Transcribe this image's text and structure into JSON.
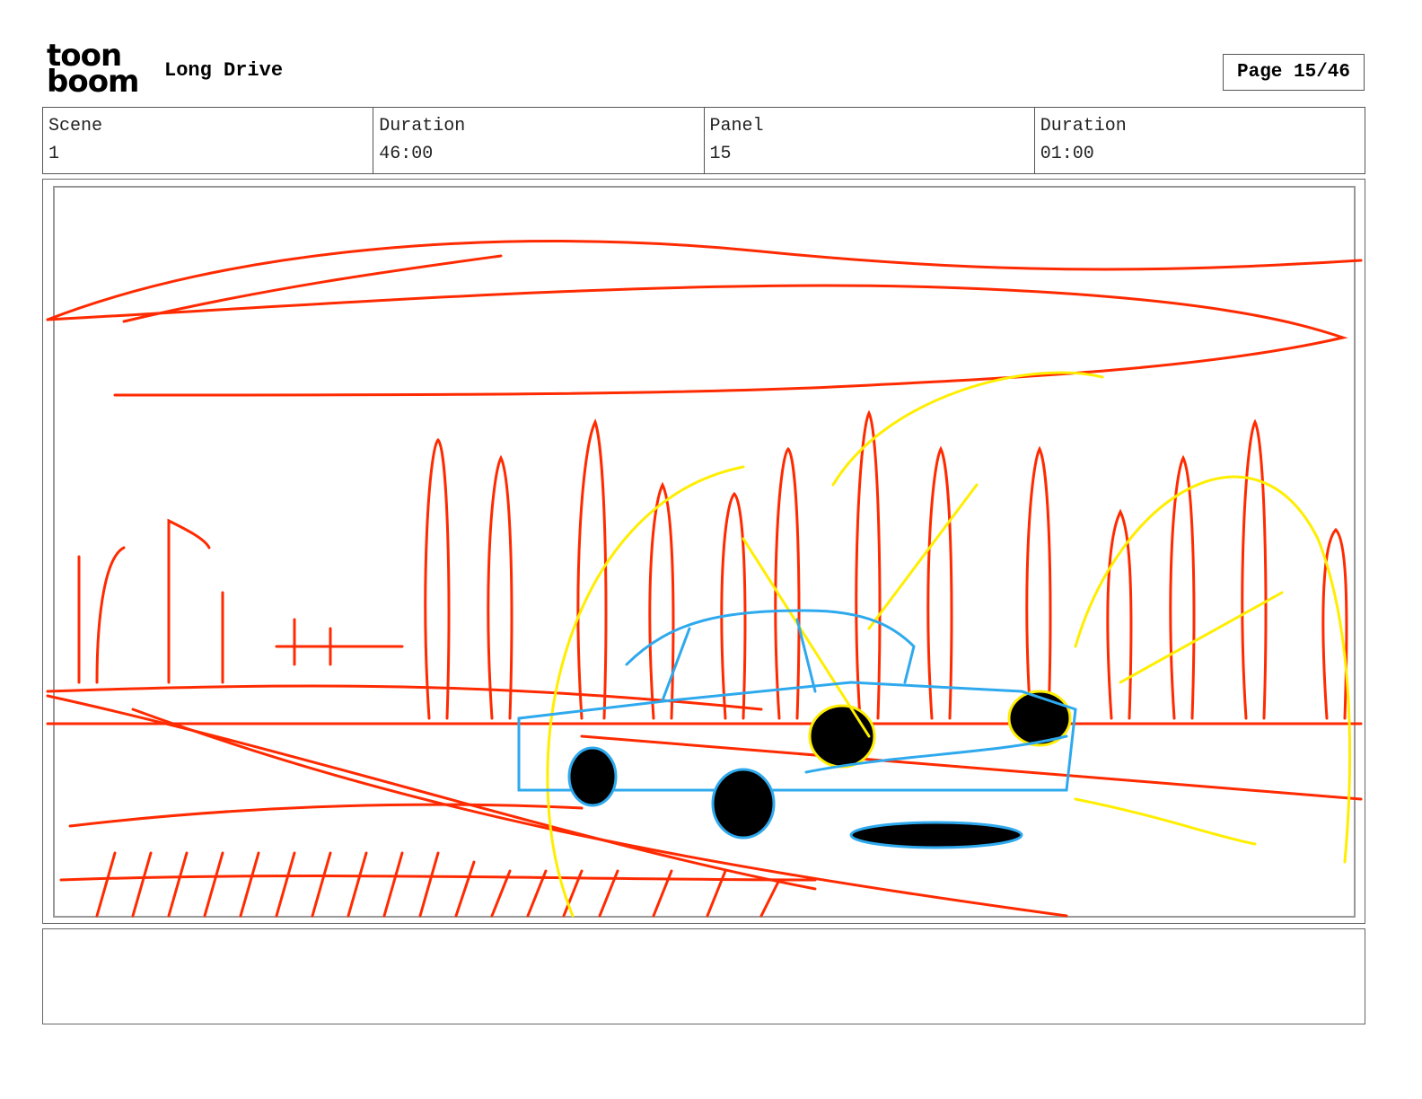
{
  "header": {
    "logo": [
      "toon",
      "boom"
    ],
    "title": "Long Drive",
    "page": "Page 15/46"
  },
  "info": [
    {
      "label": "Scene",
      "value": "1"
    },
    {
      "label": "Duration",
      "value": "46:00"
    },
    {
      "label": "Panel",
      "value": "15"
    },
    {
      "label": "Duration",
      "value": "01:00"
    }
  ]
}
